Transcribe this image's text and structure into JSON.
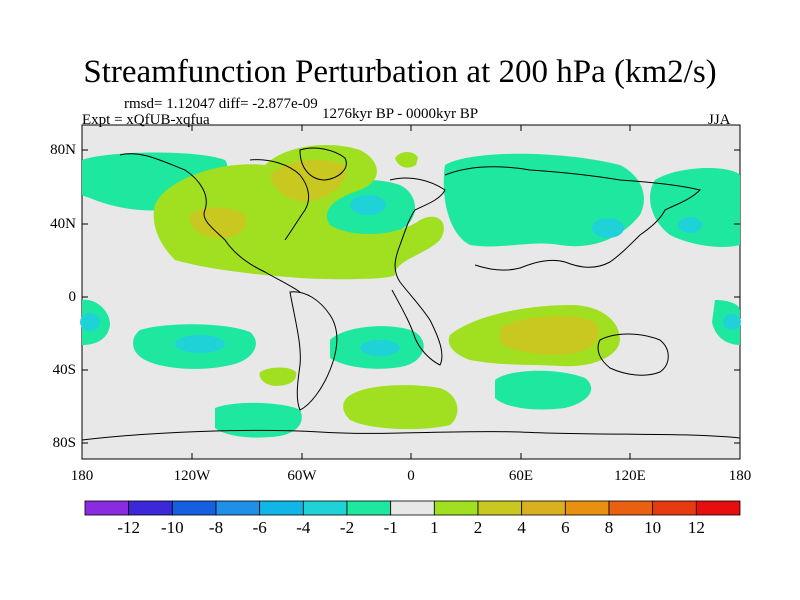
{
  "title": "Streamfunction Perturbation at 200 hPa (km2/s)",
  "stats": "rmsd= 1.12047 diff= -2.877e-09",
  "experiment": "Expt = xQfUB-xqfua",
  "period": "1276kyr BP - 0000kyr BP",
  "season": "JJA",
  "lat_labels": [
    "80N",
    "40N",
    "0",
    "40S",
    "80S"
  ],
  "lon_labels": [
    "180",
    "120W",
    "60W",
    "0",
    "60E",
    "120E",
    "180"
  ],
  "colorbar": {
    "colors": [
      "#8a2be2",
      "#3c28d8",
      "#1560e0",
      "#1f8fe8",
      "#12b6e6",
      "#1fd2d8",
      "#1ee8a0",
      "#e8e8e8",
      "#a0e020",
      "#c8c820",
      "#d8b020",
      "#e89010",
      "#e86010",
      "#e83a10",
      "#e80e0e"
    ],
    "labels": [
      "-12",
      "-10",
      "-8",
      "-6",
      "-4",
      "-2",
      "-1",
      "1",
      "2",
      "4",
      "6",
      "8",
      "10",
      "12"
    ]
  },
  "field_colors": {
    "neg1": "#1ee8a0",
    "neg2": "#1fd2d8",
    "pos1": "#a0e020",
    "pos2": "#c8c820",
    "ocean": "#e8e8e8"
  }
}
